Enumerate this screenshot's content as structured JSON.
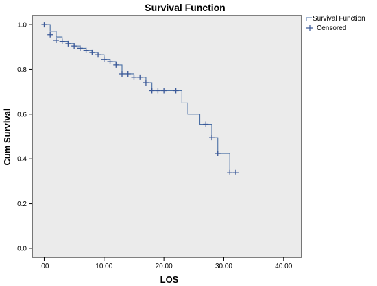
{
  "chart_data": {
    "type": "line",
    "title": "Survival Function",
    "xlabel": "LOS",
    "ylabel": "Cum Survival",
    "xlim": [
      -2,
      43
    ],
    "ylim": [
      -0.04,
      1.04
    ],
    "x_ticks": [
      0,
      10,
      20,
      30,
      40
    ],
    "x_tick_labels": [
      ".00",
      "10.00",
      "20.00",
      "30.00",
      "40.00"
    ],
    "y_ticks": [
      0.0,
      0.2,
      0.4,
      0.6,
      0.8,
      1.0
    ],
    "y_tick_labels": [
      "0.0",
      "0.2",
      "0.4",
      "0.6",
      "0.8",
      "1.0"
    ],
    "grid": false,
    "legend_position": "top-right, outside plot",
    "legend": [
      "Survival Function",
      "Censored"
    ],
    "colors": {
      "line": "#4a6fa5",
      "censored": "#3b5998",
      "plot_bg": "#ebebeb"
    },
    "series": [
      {
        "name": "Survival Function",
        "x": [
          0,
          1,
          2,
          3,
          4,
          5,
          6,
          7,
          8,
          9,
          10,
          11,
          12,
          13,
          15,
          17,
          18,
          23,
          24,
          26,
          28,
          29,
          31,
          32
        ],
        "values": [
          1.0,
          0.97,
          0.945,
          0.925,
          0.915,
          0.905,
          0.895,
          0.885,
          0.875,
          0.865,
          0.845,
          0.835,
          0.82,
          0.78,
          0.765,
          0.74,
          0.705,
          0.65,
          0.6,
          0.555,
          0.495,
          0.425,
          0.34,
          0.34
        ]
      },
      {
        "name": "Censored",
        "x": [
          0,
          1,
          2,
          3,
          4,
          5,
          6,
          7,
          8,
          9,
          10,
          11,
          12,
          13,
          14,
          15,
          16,
          17,
          18,
          19,
          20,
          22,
          27,
          28,
          29,
          31,
          32
        ],
        "values": [
          1.0,
          0.955,
          0.93,
          0.925,
          0.915,
          0.905,
          0.895,
          0.885,
          0.875,
          0.865,
          0.845,
          0.835,
          0.82,
          0.78,
          0.78,
          0.765,
          0.765,
          0.74,
          0.705,
          0.705,
          0.705,
          0.705,
          0.555,
          0.495,
          0.425,
          0.34,
          0.34
        ]
      }
    ]
  }
}
